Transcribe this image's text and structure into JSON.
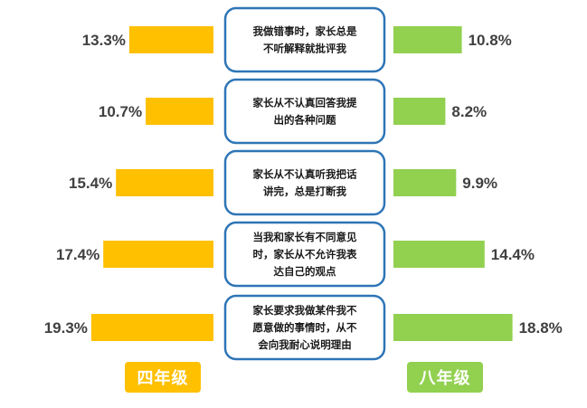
{
  "chart_data": {
    "type": "bar",
    "layout": "butterfly",
    "categories": [
      [
        "我做错事时，家长总是",
        "不听解释就批评我"
      ],
      [
        "家长从不认真回答我提",
        "出的各种问题"
      ],
      [
        "家长从不认真听我把话",
        "讲完，总是打断我"
      ],
      [
        "当我和家长有不同意见",
        "时，家长从不允许我表",
        "达自己的观点"
      ],
      [
        "家长要求我做某件我不",
        "愿意做的事情时，从不",
        "会向我耐心说明理由"
      ]
    ],
    "series": [
      {
        "name": "四年级",
        "color": "#FFC000",
        "values": [
          13.3,
          10.7,
          15.4,
          17.4,
          19.3
        ],
        "labels": [
          "13.3%",
          "10.7%",
          "15.4%",
          "17.4%",
          "19.3%"
        ]
      },
      {
        "name": "八年级",
        "color": "#92D050",
        "values": [
          10.8,
          8.2,
          9.9,
          14.4,
          18.8
        ],
        "labels": [
          "10.8%",
          "8.2%",
          "9.9%",
          "14.4%",
          "18.8%"
        ]
      }
    ],
    "unit": "%",
    "grid": false,
    "legend": "bottom",
    "box_border_color": "#2E75B6"
  }
}
